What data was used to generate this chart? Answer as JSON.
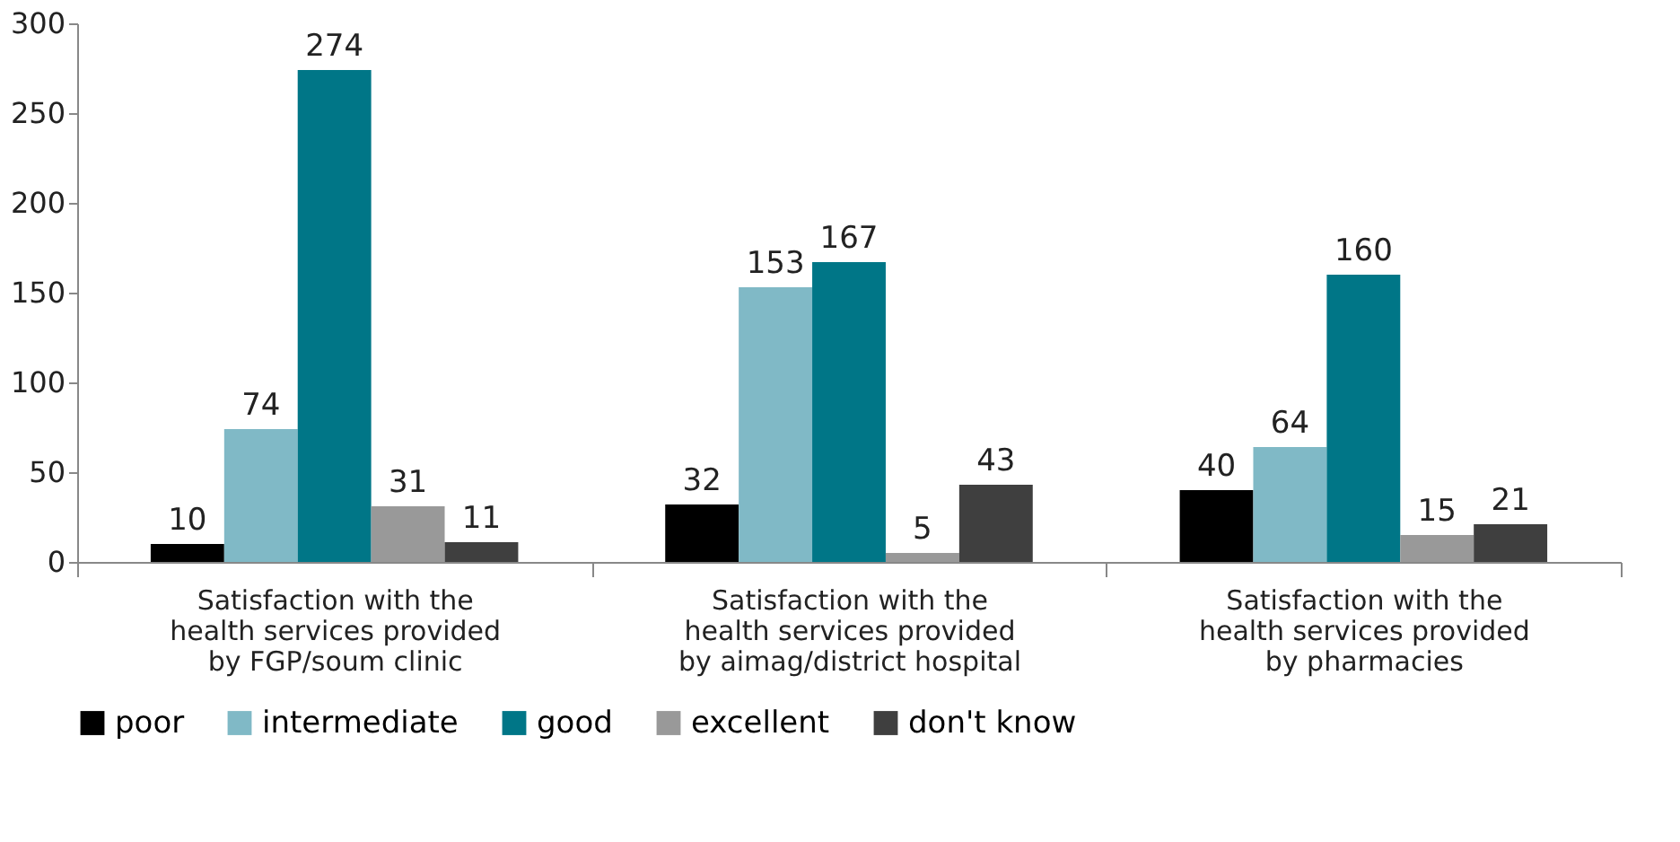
{
  "chart_data": {
    "type": "bar",
    "categories": [
      "Satisfaction with the health services provided by FGP/soum clinic",
      "Satisfaction with the health services provided by aimag/district hospital",
      "Satisfaction with the health services provided by pharmacies"
    ],
    "series": [
      {
        "name": "poor",
        "color": "#000000",
        "values": [
          10,
          32,
          40
        ]
      },
      {
        "name": "intermediate",
        "color": "#80b9c6",
        "values": [
          74,
          153,
          64
        ]
      },
      {
        "name": "good",
        "color": "#007687",
        "values": [
          274,
          167,
          160
        ]
      },
      {
        "name": "excellent",
        "color": "#999999",
        "values": [
          31,
          5,
          15
        ]
      },
      {
        "name": "don't know",
        "color": "#3f3f3f",
        "values": [
          11,
          43,
          21
        ]
      }
    ],
    "ylim": [
      0,
      300
    ],
    "yticks": [
      0,
      50,
      100,
      150,
      200,
      250,
      300
    ],
    "data_labels": true,
    "grid": false,
    "legend": "bottom"
  }
}
